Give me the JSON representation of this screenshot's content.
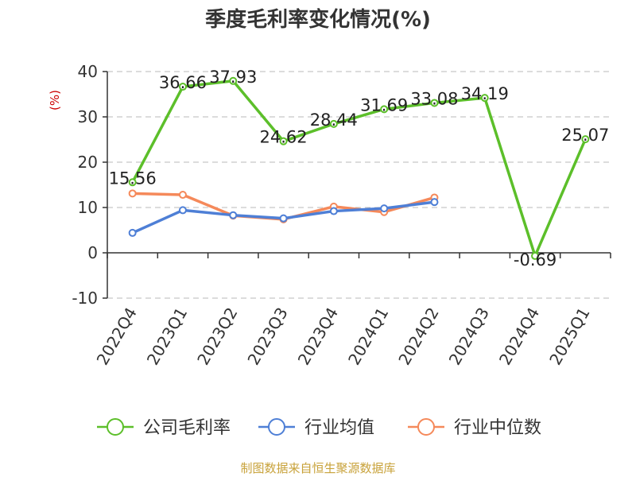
{
  "page_title": "季度毛利率变化情况(%)",
  "source": "制图数据来自恒生聚源数据库",
  "chart_data": {
    "type": "line",
    "title": "季度毛利率变化情况(%)",
    "ylabel": "(%)",
    "ylim": [
      -10,
      40
    ],
    "yticks": [
      40,
      30,
      20,
      10,
      0,
      -10
    ],
    "grid": true,
    "legend_position": "bottom",
    "categories": [
      "2022Q4",
      "2023Q1",
      "2023Q2",
      "2023Q3",
      "2023Q4",
      "2024Q1",
      "2024Q2",
      "2024Q3",
      "2024Q4",
      "2025Q1"
    ],
    "series": [
      {
        "name": "公司毛利率",
        "color": "#5cbf2a",
        "values": [
          15.56,
          36.66,
          37.93,
          24.62,
          28.44,
          31.69,
          33.08,
          34.19,
          -0.69,
          25.07
        ],
        "labels": [
          "15.56",
          "36.66",
          "37.93",
          "24.62",
          "28.44",
          "31.69",
          "33.08",
          "34.19",
          "-0.69",
          "25.07"
        ]
      },
      {
        "name": "行业均值",
        "color": "#4e7fd6",
        "values": [
          4.4,
          9.4,
          8.3,
          7.6,
          9.2,
          9.8,
          11.2,
          null,
          null,
          null
        ]
      },
      {
        "name": "行业中位数",
        "color": "#f5895a",
        "values": [
          13.1,
          12.8,
          8.2,
          7.4,
          10.2,
          9.0,
          12.2,
          null,
          null,
          null
        ]
      }
    ]
  }
}
